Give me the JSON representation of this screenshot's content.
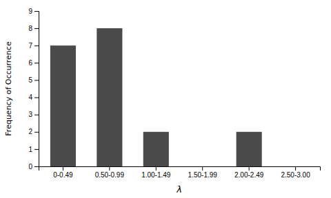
{
  "chart_data": {
    "type": "bar",
    "categories": [
      "0-0.49",
      "0.50-0.99",
      "1.00-1.49",
      "1.50-1.99",
      "2.00-2.49",
      "2.50-3.00"
    ],
    "values": [
      7,
      8,
      2,
      0,
      2,
      0
    ],
    "color": "#4a4a4a",
    "xlabel": "λ",
    "ylabel": "Frequency of Occurrence",
    "ylim": [
      0,
      9
    ],
    "yticks": [
      0,
      1,
      2,
      3,
      4,
      5,
      6,
      7,
      8,
      9
    ]
  }
}
